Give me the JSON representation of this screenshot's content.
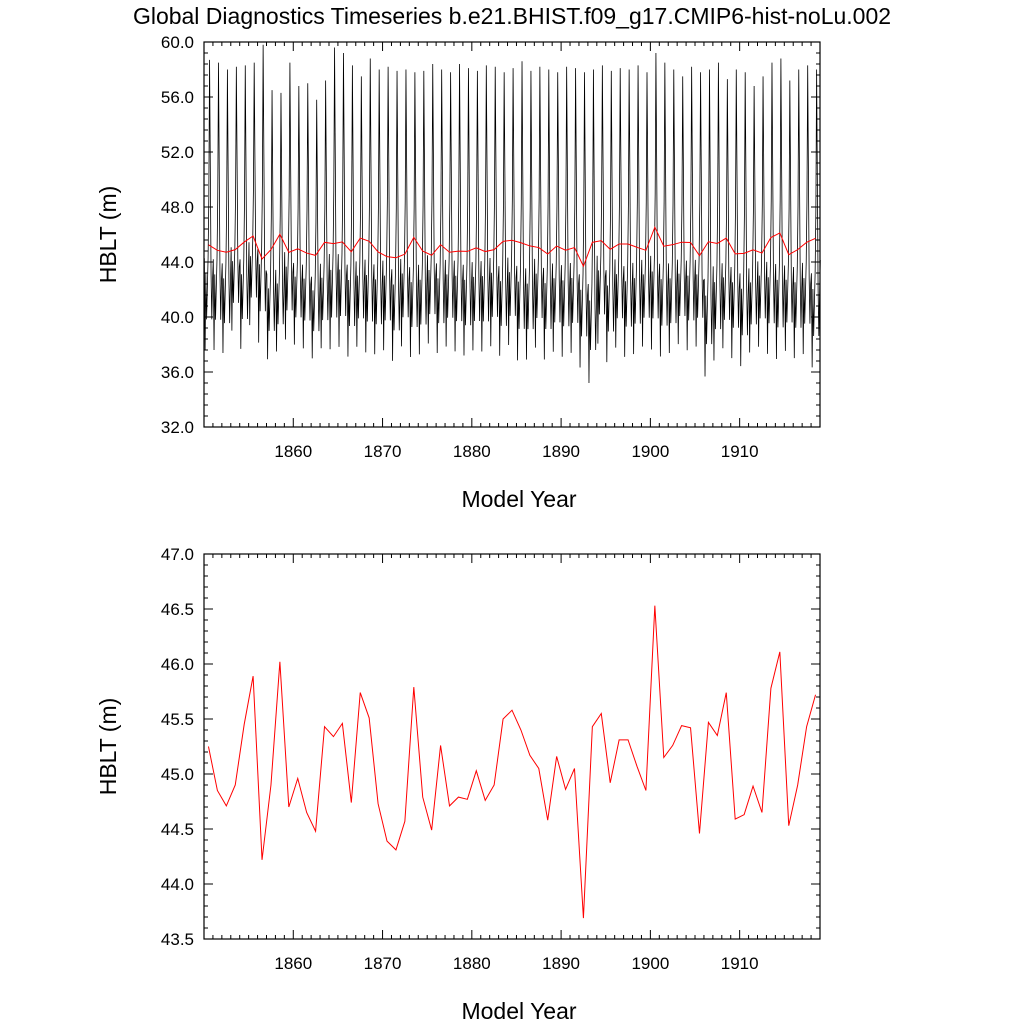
{
  "title": "Global Diagnostics Timeseries b.e21.BHIST.f09_g17.CMIP6-hist-noLu.002",
  "colors": {
    "monthly": "#000000",
    "annual": "#ff0000",
    "axes": "#000000"
  },
  "chart_data": [
    {
      "type": "line",
      "panel": "top",
      "xlabel": "Model Year",
      "ylabel": "HBLT (m)",
      "xlim": [
        1850,
        1919
      ],
      "ylim": [
        32.0,
        60.0
      ],
      "xticks": [
        1860,
        1870,
        1880,
        1890,
        1900,
        1910
      ],
      "xticklabels": [
        "1860",
        "1870",
        "1880",
        "1890",
        "1900",
        "1910"
      ],
      "yticks": [
        32,
        36,
        40,
        44,
        48,
        52,
        56,
        60
      ],
      "yticklabels": [
        "32.0",
        "36.0",
        "40.0",
        "44.0",
        "48.0",
        "52.0",
        "56.0",
        "60.0"
      ],
      "grid": false,
      "series": [
        {
          "color": "#000000",
          "resolution": "monthly",
          "x_start": 1850.04,
          "x_step": 0.08333,
          "annual_cycle_shape": [
            0.35,
            0.05,
            0.3,
            0.15,
            0.25,
            0.35,
            0.55,
            1.0,
            0.65,
            0.3,
            0.15,
            0.28
          ],
          "annual_minimum": [
            36.5,
            36.5,
            36.3,
            38.0,
            36.6,
            38.4,
            37.0,
            35.9,
            36.5,
            37.3,
            37.0,
            36.7,
            36.0,
            36.7,
            36.5,
            36.7,
            36.0,
            36.8,
            36.3,
            36.2,
            36.5,
            35.7,
            36.8,
            36.0,
            36.2,
            37.0,
            36.3,
            36.8,
            36.4,
            36.1,
            36.5,
            36.4,
            36.8,
            36.1,
            36.9,
            35.7,
            35.8,
            36.7,
            35.8,
            36.4,
            36.0,
            36.3,
            35.2,
            34.0,
            37.0,
            35.6,
            36.7,
            36.0,
            36.2,
            36.8,
            36.5,
            36.0,
            36.3,
            37.0,
            36.5,
            36.8,
            34.5,
            35.7,
            36.7,
            35.9,
            35.3,
            36.4,
            36.8,
            36.2,
            35.8,
            36.5,
            35.9,
            36.2,
            35.2,
            36.8
          ],
          "annual_maximum": [
            58.7,
            58.5,
            58.0,
            58.2,
            58.3,
            58.5,
            59.8,
            56.5,
            56.3,
            58.5,
            56.8,
            57.0,
            55.8,
            57.2,
            59.6,
            59.2,
            58.3,
            57.5,
            58.8,
            58.0,
            58.2,
            57.9,
            58.0,
            57.8,
            57.9,
            58.4,
            58.0,
            57.8,
            58.4,
            58.1,
            57.9,
            58.3,
            58.2,
            57.8,
            58.1,
            58.6,
            57.9,
            58.2,
            58.0,
            57.8,
            58.2,
            58.1,
            57.8,
            58.0,
            58.3,
            57.9,
            58.1,
            58.0,
            58.3,
            57.8,
            59.2,
            58.5,
            58.0,
            57.5,
            58.2,
            57.8,
            58.0,
            58.5,
            57.3,
            58.0,
            57.8,
            56.8,
            57.5,
            58.5,
            58.8,
            57.2,
            58.0,
            58.3,
            58.0,
            57.8
          ]
        },
        {
          "color": "#ff0000",
          "resolution": "annual",
          "x_start": 1850.5,
          "x_step": 1,
          "values": [
            45.25,
            44.85,
            44.71,
            44.9,
            45.45,
            45.89,
            44.22,
            44.9,
            46.02,
            44.7,
            44.96,
            44.65,
            44.48,
            45.43,
            45.34,
            45.46,
            44.74,
            45.74,
            45.51,
            44.73,
            44.39,
            44.31,
            44.57,
            45.79,
            44.79,
            44.49,
            45.26,
            44.71,
            44.79,
            44.77,
            45.03,
            44.76,
            44.9,
            45.5,
            45.58,
            45.4,
            45.17,
            45.05,
            44.58,
            45.16,
            44.86,
            45.05,
            43.69,
            45.43,
            45.55,
            44.92,
            45.31,
            45.31,
            45.07,
            44.85,
            46.53,
            45.15,
            45.26,
            45.44,
            45.42,
            44.46,
            45.47,
            45.35,
            45.74,
            44.59,
            44.63,
            44.89,
            44.65,
            45.78,
            46.11,
            44.53,
            44.9,
            45.43,
            45.72
          ]
        }
      ]
    },
    {
      "type": "line",
      "panel": "bottom",
      "xlabel": "Model Year",
      "ylabel": "HBLT (m)",
      "xlim": [
        1850,
        1919
      ],
      "ylim": [
        43.5,
        47.0
      ],
      "xticks": [
        1860,
        1870,
        1880,
        1890,
        1900,
        1910
      ],
      "xticklabels": [
        "1860",
        "1870",
        "1880",
        "1890",
        "1900",
        "1910"
      ],
      "yticks": [
        43.5,
        44.0,
        44.5,
        45.0,
        45.5,
        46.0,
        46.5,
        47.0
      ],
      "yticklabels": [
        "43.5",
        "44.0",
        "44.5",
        "45.0",
        "45.5",
        "46.0",
        "46.5",
        "47.0"
      ],
      "grid": false,
      "series": [
        {
          "color": "#ff0000",
          "resolution": "annual",
          "x_start": 1850.5,
          "x_step": 1,
          "values": [
            45.25,
            44.85,
            44.71,
            44.9,
            45.45,
            45.89,
            44.22,
            44.9,
            46.02,
            44.7,
            44.96,
            44.65,
            44.48,
            45.43,
            45.34,
            45.46,
            44.74,
            45.74,
            45.51,
            44.73,
            44.39,
            44.31,
            44.57,
            45.79,
            44.79,
            44.49,
            45.26,
            44.71,
            44.79,
            44.77,
            45.03,
            44.76,
            44.9,
            45.5,
            45.58,
            45.4,
            45.17,
            45.05,
            44.58,
            45.16,
            44.86,
            45.05,
            43.69,
            45.43,
            45.55,
            44.92,
            45.31,
            45.31,
            45.07,
            44.85,
            46.53,
            45.15,
            45.26,
            45.44,
            45.42,
            44.46,
            45.47,
            45.35,
            45.74,
            44.59,
            44.63,
            44.89,
            44.65,
            45.78,
            46.11,
            44.53,
            44.9,
            45.43,
            45.72
          ]
        }
      ]
    }
  ]
}
